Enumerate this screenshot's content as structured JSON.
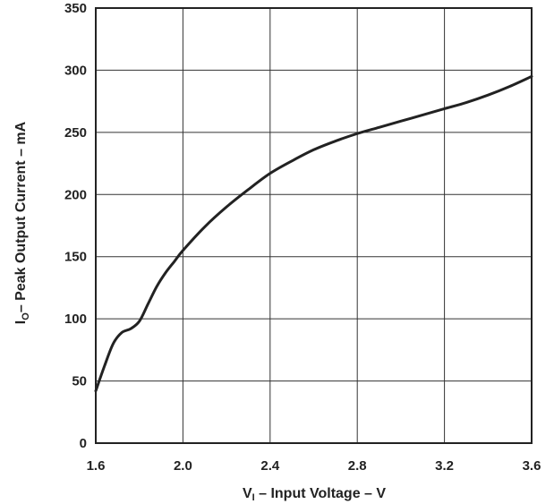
{
  "chart_data": {
    "type": "line",
    "title": "",
    "xlabel": {
      "main": "V",
      "sub": "I",
      "rest": " – Input Voltage – V"
    },
    "ylabel": {
      "main": "I",
      "sub": "O",
      "rest": "– Peak Output Current – mA"
    },
    "xlim": [
      1.6,
      3.6
    ],
    "ylim": [
      0,
      350
    ],
    "xticks": [
      1.6,
      2.0,
      2.4,
      2.8,
      3.2,
      3.6
    ],
    "xtick_labels": [
      "1.6",
      "2.0",
      "2.4",
      "2.8",
      "3.2",
      "3.6"
    ],
    "yticks": [
      0,
      50,
      100,
      150,
      200,
      250,
      300,
      350
    ],
    "ytick_labels": [
      "0",
      "50",
      "100",
      "150",
      "200",
      "250",
      "300",
      "350"
    ],
    "grid": true,
    "series": [
      {
        "color": "#222222",
        "x": [
          1.6,
          1.64,
          1.68,
          1.72,
          1.76,
          1.8,
          1.84,
          1.88,
          1.92,
          1.96,
          2.0,
          2.1,
          2.2,
          2.3,
          2.4,
          2.5,
          2.6,
          2.7,
          2.8,
          2.9,
          3.0,
          3.1,
          3.2,
          3.3,
          3.4,
          3.5,
          3.6
        ],
        "y": [
          42,
          62,
          80,
          89,
          92,
          98,
          112,
          126,
          137,
          146,
          155,
          174,
          190,
          204,
          217,
          227,
          236,
          243,
          249,
          254,
          259,
          264,
          269,
          274,
          280,
          287,
          295
        ]
      }
    ]
  }
}
